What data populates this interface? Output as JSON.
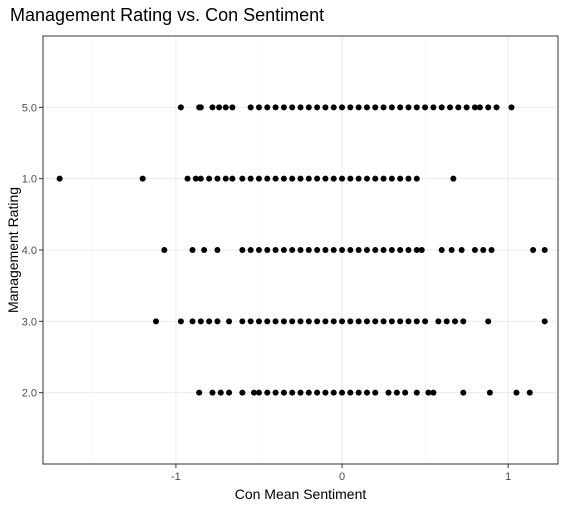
{
  "chart_data": {
    "type": "scatter",
    "title": "Management Rating vs. Con Sentiment",
    "xlabel": "Con Mean Sentiment",
    "ylabel": "Management Rating",
    "xlim": [
      -1.8,
      1.3
    ],
    "x_ticks": [
      -1,
      0,
      1
    ],
    "x_tick_labels": [
      "-1",
      "0",
      "1"
    ],
    "categories": [
      "2.0",
      "3.0",
      "4.0",
      "1.0",
      "5.0"
    ],
    "grid": true,
    "legend": "none",
    "point_color": "#000000",
    "series": [
      {
        "category": "5.0",
        "values": [
          -0.97,
          -0.86,
          -0.85,
          -0.78,
          -0.74,
          -0.7,
          -0.66,
          -0.55,
          -0.5,
          -0.45,
          -0.4,
          -0.35,
          -0.3,
          -0.25,
          -0.2,
          -0.15,
          -0.1,
          -0.05,
          0.0,
          0.05,
          0.1,
          0.15,
          0.2,
          0.25,
          0.3,
          0.35,
          0.4,
          0.45,
          0.5,
          0.55,
          0.6,
          0.65,
          0.7,
          0.75,
          0.8,
          0.83,
          0.88,
          0.93,
          1.02
        ]
      },
      {
        "category": "1.0",
        "values": [
          -1.7,
          -1.2,
          -0.93,
          -0.88,
          -0.85,
          -0.8,
          -0.75,
          -0.7,
          -0.66,
          -0.6,
          -0.55,
          -0.5,
          -0.45,
          -0.4,
          -0.35,
          -0.3,
          -0.25,
          -0.2,
          -0.15,
          -0.1,
          -0.05,
          0.0,
          0.05,
          0.1,
          0.15,
          0.2,
          0.25,
          0.3,
          0.35,
          0.4,
          0.45,
          0.67
        ]
      },
      {
        "category": "4.0",
        "values": [
          -1.07,
          -0.9,
          -0.83,
          -0.75,
          -0.6,
          -0.55,
          -0.5,
          -0.45,
          -0.4,
          -0.35,
          -0.3,
          -0.25,
          -0.2,
          -0.15,
          -0.1,
          -0.05,
          0.0,
          0.05,
          0.1,
          0.15,
          0.2,
          0.25,
          0.3,
          0.35,
          0.4,
          0.45,
          0.48,
          0.6,
          0.66,
          0.72,
          0.8,
          0.85,
          0.9,
          1.15,
          1.22
        ]
      },
      {
        "category": "3.0",
        "values": [
          -1.12,
          -0.97,
          -0.9,
          -0.85,
          -0.8,
          -0.75,
          -0.68,
          -0.6,
          -0.55,
          -0.5,
          -0.45,
          -0.4,
          -0.35,
          -0.3,
          -0.25,
          -0.2,
          -0.15,
          -0.1,
          -0.05,
          0.0,
          0.05,
          0.1,
          0.15,
          0.2,
          0.25,
          0.3,
          0.35,
          0.4,
          0.45,
          0.5,
          0.58,
          0.63,
          0.68,
          0.73,
          0.88,
          1.22
        ]
      },
      {
        "category": "2.0",
        "values": [
          -0.86,
          -0.78,
          -0.73,
          -0.68,
          -0.6,
          -0.53,
          -0.5,
          -0.45,
          -0.4,
          -0.35,
          -0.3,
          -0.25,
          -0.2,
          -0.15,
          -0.1,
          -0.05,
          0.0,
          0.05,
          0.1,
          0.15,
          0.2,
          0.28,
          0.33,
          0.38,
          0.45,
          0.52,
          0.55,
          0.73,
          0.89,
          1.05,
          1.13
        ]
      }
    ]
  }
}
